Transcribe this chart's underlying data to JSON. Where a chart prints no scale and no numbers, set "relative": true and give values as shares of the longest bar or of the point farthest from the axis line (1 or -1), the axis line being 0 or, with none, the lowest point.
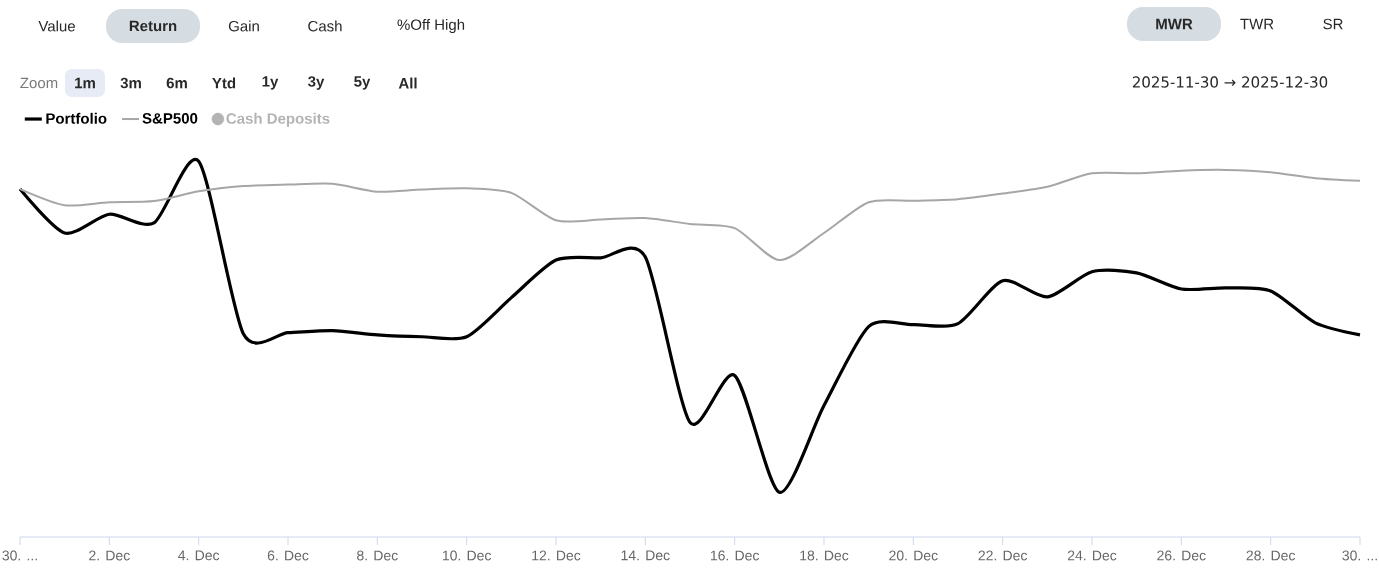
{
  "chart_data": {
    "type": "line",
    "relative": true,
    "x": [
      "2025-11-30",
      "2025-12-01",
      "2025-12-02",
      "2025-12-03",
      "2025-12-04",
      "2025-12-05",
      "2025-12-06",
      "2025-12-07",
      "2025-12-08",
      "2025-12-09",
      "2025-12-10",
      "2025-12-11",
      "2025-12-12",
      "2025-12-13",
      "2025-12-14",
      "2025-12-15",
      "2025-12-16",
      "2025-12-17",
      "2025-12-18",
      "2025-12-19",
      "2025-12-20",
      "2025-12-21",
      "2025-12-22",
      "2025-12-23",
      "2025-12-24",
      "2025-12-25",
      "2025-12-26",
      "2025-12-27",
      "2025-12-28",
      "2025-12-29",
      "2025-12-30"
    ],
    "series": [
      {
        "name": "Portfolio",
        "color": "#000000",
        "values": [
          0.926,
          0.809,
          0.859,
          0.836,
          1.0,
          0.541,
          0.544,
          0.549,
          0.538,
          0.533,
          0.533,
          0.637,
          0.737,
          0.743,
          0.745,
          0.305,
          0.43,
          0.119,
          0.35,
          0.56,
          0.565,
          0.568,
          0.682,
          0.639,
          0.706,
          0.703,
          0.66,
          0.663,
          0.655,
          0.57,
          0.538
        ]
      },
      {
        "name": "S&P500",
        "color": "#a6a6a6",
        "values": [
          0.926,
          0.883,
          0.891,
          0.894,
          0.92,
          0.934,
          0.938,
          0.94,
          0.919,
          0.925,
          0.928,
          0.916,
          0.843,
          0.845,
          0.849,
          0.833,
          0.822,
          0.737,
          0.809,
          0.891,
          0.895,
          0.899,
          0.914,
          0.932,
          0.968,
          0.968,
          0.975,
          0.977,
          0.971,
          0.955,
          0.948
        ]
      },
      {
        "name": "Cash Deposits",
        "type": "scatter",
        "color": "#b3b3b3",
        "values": [
          null,
          null,
          null,
          null,
          null,
          null,
          null,
          null,
          null,
          null,
          null,
          null,
          null,
          null,
          null,
          null,
          null,
          null,
          null,
          null,
          null,
          null,
          null,
          null,
          null,
          null,
          null,
          null,
          null,
          null,
          null
        ]
      }
    ],
    "xlim": [
      "2025-11-30",
      "2025-12-30"
    ],
    "xticks": [
      {
        "value": "2025-11-30",
        "label": "30. ..."
      },
      {
        "value": "2025-12-02",
        "label": "2. Dec"
      },
      {
        "value": "2025-12-04",
        "label": "4. Dec"
      },
      {
        "value": "2025-12-06",
        "label": "6. Dec"
      },
      {
        "value": "2025-12-08",
        "label": "8. Dec"
      },
      {
        "value": "2025-12-10",
        "label": "10. Dec"
      },
      {
        "value": "2025-12-12",
        "label": "12. Dec"
      },
      {
        "value": "2025-12-14",
        "label": "14. Dec"
      },
      {
        "value": "2025-12-16",
        "label": "16. Dec"
      },
      {
        "value": "2025-12-18",
        "label": "18. Dec"
      },
      {
        "value": "2025-12-20",
        "label": "20. Dec"
      },
      {
        "value": "2025-12-22",
        "label": "22. Dec"
      },
      {
        "value": "2025-12-24",
        "label": "24. Dec"
      },
      {
        "value": "2025-12-26",
        "label": "26. Dec"
      },
      {
        "value": "2025-12-28",
        "label": "28. Dec"
      },
      {
        "value": "2025-12-30",
        "label": "30. ..."
      }
    ],
    "legend": "top left",
    "marker": "none",
    "line_style": "solid",
    "annotations": [
      "Value",
      "Return",
      "Gain",
      "Cash",
      "%Off High",
      "MWR",
      "TWR",
      "SR",
      "Zoom",
      "1m",
      "3m",
      "6m",
      "Ytd",
      "1y",
      "3y",
      "5y",
      "All",
      "2025-11-30 → 2025-12-30"
    ]
  }
}
